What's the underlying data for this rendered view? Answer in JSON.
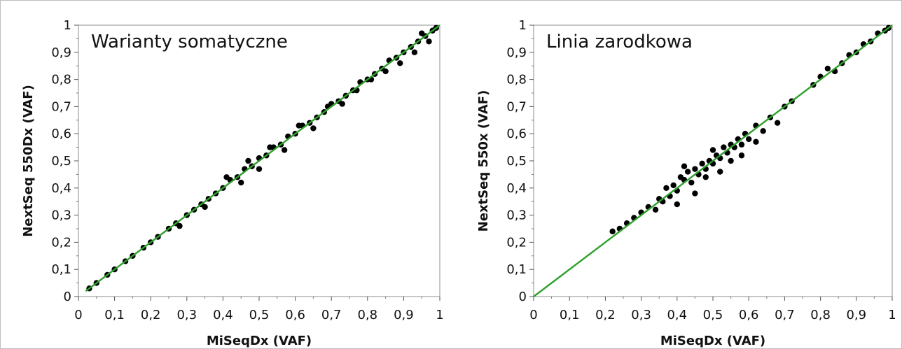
{
  "chart_data": [
    {
      "type": "scatter",
      "title": "Warianty somatyczne",
      "xlabel": "MiSeqDx (VAF)",
      "ylabel": "NextSeq 550Dx (VAF)",
      "xlim": [
        0,
        1
      ],
      "ylim": [
        0,
        1
      ],
      "xticks": [
        "0",
        "0,1",
        "0,2",
        "0,3",
        "0,4",
        "0,5",
        "0,6",
        "0,7",
        "0,8",
        "0,9",
        "1"
      ],
      "yticks": [
        "0",
        "0,1",
        "0,2",
        "0,3",
        "0,4",
        "0,5",
        "0,6",
        "0,7",
        "0,8",
        "0,9",
        "1"
      ],
      "grid": false,
      "marker_color": "#000000",
      "fit_line": {
        "x": [
          0.02,
          1.0
        ],
        "y": [
          0.02,
          1.0
        ],
        "color": "#2ca02c"
      },
      "points": {
        "x": [
          0.03,
          0.05,
          0.08,
          0.1,
          0.13,
          0.15,
          0.18,
          0.2,
          0.22,
          0.25,
          0.27,
          0.3,
          0.32,
          0.34,
          0.36,
          0.38,
          0.4,
          0.42,
          0.44,
          0.46,
          0.48,
          0.5,
          0.52,
          0.54,
          0.56,
          0.58,
          0.6,
          0.62,
          0.64,
          0.66,
          0.68,
          0.7,
          0.72,
          0.74,
          0.76,
          0.78,
          0.8,
          0.82,
          0.84,
          0.86,
          0.88,
          0.9,
          0.92,
          0.94,
          0.96,
          0.98,
          0.99,
          0.28,
          0.35,
          0.41,
          0.45,
          0.47,
          0.5,
          0.53,
          0.57,
          0.61,
          0.65,
          0.69,
          0.73,
          0.77,
          0.81,
          0.85,
          0.89,
          0.93,
          0.95,
          0.97
        ],
        "y": [
          0.03,
          0.05,
          0.08,
          0.1,
          0.13,
          0.15,
          0.18,
          0.2,
          0.22,
          0.25,
          0.27,
          0.3,
          0.32,
          0.34,
          0.36,
          0.38,
          0.4,
          0.43,
          0.44,
          0.47,
          0.48,
          0.51,
          0.52,
          0.55,
          0.56,
          0.59,
          0.6,
          0.63,
          0.64,
          0.66,
          0.68,
          0.71,
          0.72,
          0.74,
          0.76,
          0.79,
          0.8,
          0.82,
          0.84,
          0.87,
          0.88,
          0.9,
          0.92,
          0.94,
          0.96,
          0.98,
          0.99,
          0.26,
          0.33,
          0.44,
          0.42,
          0.5,
          0.47,
          0.55,
          0.54,
          0.63,
          0.62,
          0.7,
          0.71,
          0.76,
          0.8,
          0.83,
          0.86,
          0.9,
          0.97,
          0.94
        ]
      }
    },
    {
      "type": "scatter",
      "title": "Linia zarodkowa",
      "xlabel": "MiSeqDx (VAF)",
      "ylabel": "NextSeq 550x (VAF)",
      "xlim": [
        0,
        1
      ],
      "ylim": [
        0,
        1
      ],
      "xticks": [
        "0",
        "0,1",
        "0,2",
        "0,3",
        "0,4",
        "0,5",
        "0,6",
        "0,7",
        "0,8",
        "0,9",
        "1"
      ],
      "yticks": [
        "0",
        "0,1",
        "0,2",
        "0,3",
        "0,4",
        "0,5",
        "0,6",
        "0,7",
        "0,8",
        "0,9",
        "1"
      ],
      "grid": false,
      "marker_color": "#000000",
      "fit_line": {
        "x": [
          0.0,
          1.0
        ],
        "y": [
          0.0,
          1.0
        ],
        "color": "#2ca02c"
      },
      "points": {
        "x": [
          0.22,
          0.24,
          0.26,
          0.28,
          0.3,
          0.32,
          0.34,
          0.35,
          0.36,
          0.37,
          0.38,
          0.39,
          0.4,
          0.41,
          0.42,
          0.43,
          0.44,
          0.45,
          0.46,
          0.47,
          0.48,
          0.49,
          0.5,
          0.51,
          0.52,
          0.53,
          0.54,
          0.55,
          0.56,
          0.57,
          0.58,
          0.59,
          0.6,
          0.62,
          0.64,
          0.66,
          0.68,
          0.7,
          0.72,
          0.78,
          0.8,
          0.82,
          0.84,
          0.86,
          0.88,
          0.9,
          0.92,
          0.94,
          0.96,
          0.98,
          0.99,
          0.4,
          0.45,
          0.5,
          0.55,
          0.42,
          0.48,
          0.52,
          0.58,
          0.62
        ],
        "y": [
          0.24,
          0.25,
          0.27,
          0.29,
          0.31,
          0.33,
          0.32,
          0.36,
          0.35,
          0.4,
          0.37,
          0.41,
          0.39,
          0.44,
          0.43,
          0.46,
          0.42,
          0.47,
          0.45,
          0.49,
          0.47,
          0.5,
          0.49,
          0.52,
          0.51,
          0.55,
          0.53,
          0.56,
          0.55,
          0.58,
          0.56,
          0.6,
          0.58,
          0.63,
          0.61,
          0.66,
          0.64,
          0.7,
          0.72,
          0.78,
          0.81,
          0.84,
          0.83,
          0.86,
          0.89,
          0.9,
          0.93,
          0.94,
          0.97,
          0.98,
          0.99,
          0.34,
          0.38,
          0.54,
          0.5,
          0.48,
          0.44,
          0.46,
          0.52,
          0.57
        ]
      }
    }
  ]
}
